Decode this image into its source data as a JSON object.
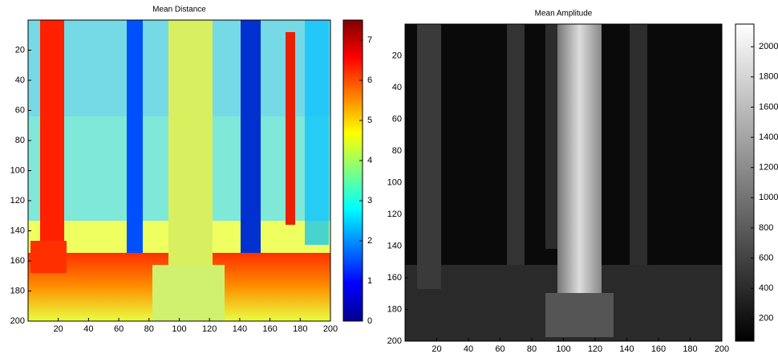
{
  "chart_data": [
    {
      "type": "image",
      "title": "Mean Distance",
      "colormap": "jet",
      "xlim": [
        0,
        200
      ],
      "ylim": [
        200,
        0
      ],
      "xticks": [
        20,
        40,
        60,
        80,
        100,
        120,
        140,
        160,
        180,
        200
      ],
      "yticks": [
        20,
        40,
        60,
        80,
        100,
        120,
        140,
        160,
        180,
        200
      ],
      "clim": [
        0,
        7.5
      ],
      "cticks": [
        0,
        1,
        2,
        3,
        4,
        5,
        6,
        7
      ]
    },
    {
      "type": "image",
      "title": "Mean Amplitude",
      "colormap": "gray",
      "xlim": [
        0,
        200
      ],
      "ylim": [
        200,
        0
      ],
      "xticks": [
        20,
        40,
        60,
        80,
        100,
        120,
        140,
        160,
        180,
        200
      ],
      "yticks": [
        20,
        40,
        60,
        80,
        100,
        120,
        140,
        160,
        180,
        200
      ],
      "clim": [
        50,
        2150
      ],
      "cticks": [
        200,
        400,
        600,
        800,
        1000,
        1200,
        1400,
        1600,
        1800,
        2000
      ]
    }
  ]
}
